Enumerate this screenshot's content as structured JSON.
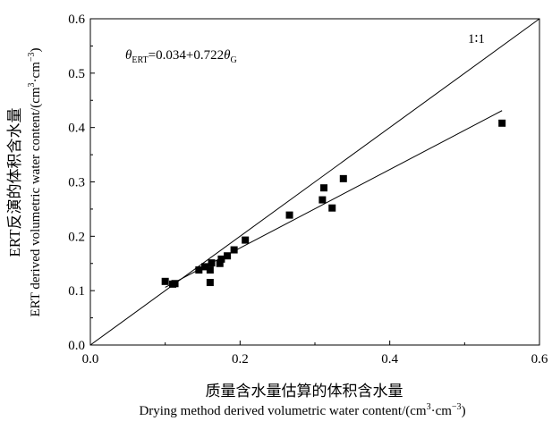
{
  "chart_data": {
    "type": "scatter",
    "xlabel_zh": "质量含水量估算的体积含水量",
    "xlabel_en": "Drying method derived volumetric water content/(cm³·cm⁻³)",
    "ylabel_zh": "ERT反演的体积含水量",
    "ylabel_en": "ERT derived volumetric water content/(cm³·cm⁻³)",
    "xlim": [
      0.0,
      0.6
    ],
    "ylim": [
      0.0,
      0.6
    ],
    "x_ticks": [
      "0.0",
      "0.2",
      "0.4",
      "0.6"
    ],
    "y_ticks": [
      "0.0",
      "0.1",
      "0.2",
      "0.3",
      "0.4",
      "0.5",
      "0.6"
    ],
    "equation": "θERT=0.034+0.722θG",
    "one_to_one_label": "1∶1",
    "fit": {
      "intercept": 0.034,
      "slope": 0.722,
      "x_range": [
        0.1,
        0.55
      ]
    },
    "one_to_one": {
      "x_range": [
        0.0,
        0.6
      ]
    },
    "points": [
      {
        "x": 0.1,
        "y": 0.117
      },
      {
        "x": 0.11,
        "y": 0.112
      },
      {
        "x": 0.113,
        "y": 0.113
      },
      {
        "x": 0.145,
        "y": 0.138
      },
      {
        "x": 0.153,
        "y": 0.144
      },
      {
        "x": 0.16,
        "y": 0.115
      },
      {
        "x": 0.16,
        "y": 0.138
      },
      {
        "x": 0.162,
        "y": 0.151
      },
      {
        "x": 0.173,
        "y": 0.15
      },
      {
        "x": 0.175,
        "y": 0.158
      },
      {
        "x": 0.183,
        "y": 0.164
      },
      {
        "x": 0.192,
        "y": 0.175
      },
      {
        "x": 0.207,
        "y": 0.193
      },
      {
        "x": 0.266,
        "y": 0.239
      },
      {
        "x": 0.31,
        "y": 0.267
      },
      {
        "x": 0.312,
        "y": 0.289
      },
      {
        "x": 0.323,
        "y": 0.252
      },
      {
        "x": 0.338,
        "y": 0.306
      },
      {
        "x": 0.55,
        "y": 0.408
      }
    ]
  }
}
